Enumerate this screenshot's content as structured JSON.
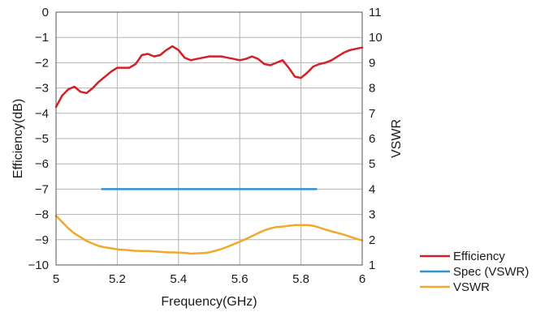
{
  "chart_data": {
    "type": "line",
    "xlabel": "Frequency(GHz)",
    "ylabel_left": "Efficiency(dB)",
    "ylabel_right": "VSWR",
    "xlim": [
      5,
      6
    ],
    "ylim_left": [
      -10,
      0
    ],
    "ylim_right": [
      1,
      11
    ],
    "x_ticks": [
      {
        "value": 5,
        "label": "5"
      },
      {
        "value": 5.2,
        "label": "5.2"
      },
      {
        "value": 5.4,
        "label": "5.4"
      },
      {
        "value": 5.6,
        "label": "5.6"
      },
      {
        "value": 5.8,
        "label": "5.8"
      },
      {
        "value": 6,
        "label": "6"
      }
    ],
    "y_ticks_left": [
      {
        "value": 0,
        "label": "0"
      },
      {
        "value": -1,
        "label": "−1"
      },
      {
        "value": -2,
        "label": "−2"
      },
      {
        "value": -3,
        "label": "−3"
      },
      {
        "value": -4,
        "label": "−4"
      },
      {
        "value": -5,
        "label": "−5"
      },
      {
        "value": -6,
        "label": "−6"
      },
      {
        "value": -7,
        "label": "−7"
      },
      {
        "value": -8,
        "label": "−8"
      },
      {
        "value": -9,
        "label": "−9"
      },
      {
        "value": -10,
        "label": "−10"
      }
    ],
    "y_ticks_right": [
      {
        "value": 11,
        "label": "11"
      },
      {
        "value": 10,
        "label": "10"
      },
      {
        "value": 9,
        "label": "9"
      },
      {
        "value": 8,
        "label": "8"
      },
      {
        "value": 7,
        "label": "7"
      },
      {
        "value": 6,
        "label": "6"
      },
      {
        "value": 5,
        "label": "5"
      },
      {
        "value": 4,
        "label": "4"
      },
      {
        "value": 3,
        "label": "3"
      },
      {
        "value": 2,
        "label": "2"
      },
      {
        "value": 1,
        "label": "1"
      }
    ],
    "grid": true,
    "legend_position": "bottom-right outside",
    "series": [
      {
        "name": "Efficiency",
        "axis": "left",
        "color": "#d32027",
        "x": [
          5.0,
          5.02,
          5.04,
          5.06,
          5.08,
          5.1,
          5.12,
          5.14,
          5.16,
          5.18,
          5.2,
          5.22,
          5.24,
          5.26,
          5.28,
          5.3,
          5.32,
          5.34,
          5.36,
          5.38,
          5.4,
          5.42,
          5.44,
          5.46,
          5.48,
          5.5,
          5.52,
          5.54,
          5.56,
          5.58,
          5.6,
          5.62,
          5.64,
          5.66,
          5.68,
          5.7,
          5.72,
          5.74,
          5.76,
          5.78,
          5.8,
          5.82,
          5.84,
          5.86,
          5.88,
          5.9,
          5.92,
          5.94,
          5.96,
          5.98,
          6.0
        ],
        "y": [
          -3.75,
          -3.3,
          -3.05,
          -2.95,
          -3.15,
          -3.2,
          -3.0,
          -2.75,
          -2.55,
          -2.35,
          -2.2,
          -2.2,
          -2.2,
          -2.05,
          -1.7,
          -1.65,
          -1.75,
          -1.7,
          -1.5,
          -1.35,
          -1.5,
          -1.8,
          -1.9,
          -1.85,
          -1.8,
          -1.75,
          -1.75,
          -1.75,
          -1.8,
          -1.85,
          -1.9,
          -1.85,
          -1.75,
          -1.85,
          -2.05,
          -2.1,
          -2.0,
          -1.9,
          -2.2,
          -2.55,
          -2.6,
          -2.4,
          -2.15,
          -2.05,
          -2.0,
          -1.9,
          -1.75,
          -1.6,
          -1.5,
          -1.45,
          -1.4
        ]
      },
      {
        "name": "Spec (VSWR)",
        "axis": "right",
        "color": "#2f93d1",
        "x": [
          5.15,
          5.85
        ],
        "y": [
          4,
          4
        ]
      },
      {
        "name": "VSWR",
        "axis": "right",
        "color": "#f0a92a",
        "x": [
          5.0,
          5.02,
          5.04,
          5.06,
          5.08,
          5.1,
          5.12,
          5.14,
          5.16,
          5.18,
          5.2,
          5.22,
          5.24,
          5.26,
          5.28,
          5.3,
          5.32,
          5.34,
          5.36,
          5.38,
          5.4,
          5.42,
          5.44,
          5.46,
          5.48,
          5.5,
          5.52,
          5.54,
          5.56,
          5.58,
          5.6,
          5.62,
          5.64,
          5.66,
          5.68,
          5.7,
          5.72,
          5.74,
          5.76,
          5.78,
          5.8,
          5.82,
          5.84,
          5.86,
          5.88,
          5.9,
          5.92,
          5.94,
          5.96,
          5.98,
          6.0
        ],
        "y": [
          2.95,
          2.7,
          2.45,
          2.25,
          2.1,
          1.95,
          1.85,
          1.75,
          1.7,
          1.66,
          1.62,
          1.6,
          1.58,
          1.56,
          1.55,
          1.55,
          1.54,
          1.52,
          1.5,
          1.5,
          1.49,
          1.48,
          1.45,
          1.46,
          1.47,
          1.5,
          1.56,
          1.63,
          1.72,
          1.82,
          1.92,
          2.03,
          2.14,
          2.26,
          2.37,
          2.45,
          2.5,
          2.52,
          2.55,
          2.58,
          2.58,
          2.58,
          2.55,
          2.48,
          2.4,
          2.33,
          2.27,
          2.2,
          2.12,
          2.04,
          1.97
        ]
      }
    ]
  }
}
